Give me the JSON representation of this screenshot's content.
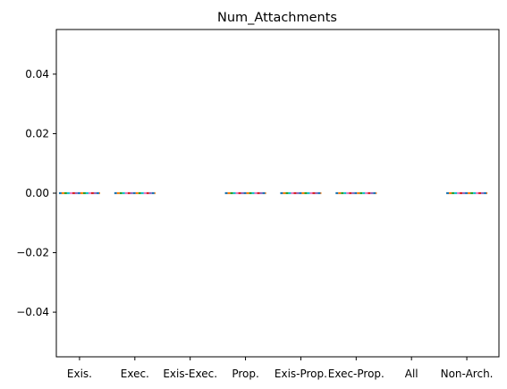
{
  "chart_data": {
    "type": "box",
    "title": "Num_Attachments",
    "xlabel": "",
    "ylabel": "",
    "categories": [
      "Exis.",
      "Exec.",
      "Exis-Exec.",
      "Prop.",
      "Exis-Prop.",
      "Exec-Prop.",
      "All",
      "Non-Arch."
    ],
    "ylim": [
      -0.055,
      0.055
    ],
    "yticks": [
      -0.04,
      -0.02,
      0.0,
      0.02,
      0.04
    ],
    "ytick_labels": [
      "−0.04",
      "−0.02",
      "0.00",
      "0.02",
      "0.04"
    ],
    "grid": false,
    "boxes": [
      {
        "category": "Exis.",
        "min": 0,
        "q1": 0,
        "median": 0,
        "q3": 0,
        "max": 0
      },
      {
        "category": "Exec.",
        "min": 0,
        "q1": 0,
        "median": 0,
        "q3": 0,
        "max": 0
      },
      {
        "category": "Exis-Exec.",
        "min": null,
        "q1": null,
        "median": null,
        "q3": null,
        "max": null
      },
      {
        "category": "Prop.",
        "min": 0,
        "q1": 0,
        "median": 0,
        "q3": 0,
        "max": 0
      },
      {
        "category": "Exis-Prop.",
        "min": 0,
        "q1": 0,
        "median": 0,
        "q3": 0,
        "max": 0
      },
      {
        "category": "Exec-Prop.",
        "min": 0,
        "q1": 0,
        "median": 0,
        "q3": 0,
        "max": 0
      },
      {
        "category": "All",
        "min": null,
        "q1": null,
        "median": null,
        "q3": null,
        "max": null
      },
      {
        "category": "Non-Arch.",
        "min": 0,
        "q1": 0,
        "median": 0,
        "q3": 0,
        "max": 0
      }
    ],
    "colors": [
      "#1f77b4",
      "#ff7f0e",
      "#2ca02c",
      "#17becf",
      "#e377c2",
      "#d62728",
      "#9467bd"
    ]
  }
}
